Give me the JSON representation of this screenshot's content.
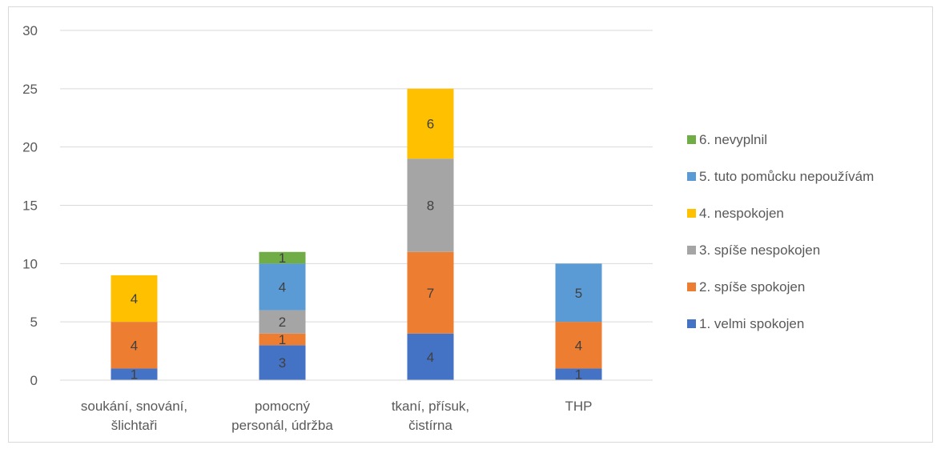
{
  "chart_data": {
    "type": "bar",
    "stacked": true,
    "categories": [
      [
        "soukání, snování,",
        "šlichtaři"
      ],
      [
        "pomocný",
        "personál, údržba"
      ],
      [
        "tkaní, přísuk,",
        "čistírna"
      ],
      [
        "THP"
      ]
    ],
    "ylim": [
      0,
      30
    ],
    "yticks": [
      0,
      5,
      10,
      15,
      20,
      25,
      30
    ],
    "grid": true,
    "legend_position": "right",
    "series": [
      {
        "name": "1. velmi spokojen",
        "color": "#4472C4",
        "values": [
          1,
          3,
          4,
          1
        ]
      },
      {
        "name": "2. spíše spokojen",
        "color": "#ED7D31",
        "values": [
          4,
          1,
          7,
          4
        ]
      },
      {
        "name": "3. spíše nespokojen",
        "color": "#A5A5A5",
        "values": [
          0,
          2,
          8,
          0
        ]
      },
      {
        "name": "4. nespokojen",
        "color": "#FFC000",
        "values": [
          4,
          0,
          6,
          0
        ]
      },
      {
        "name": "5. tuto pomůcku nepoužívám",
        "color": "#5B9BD5",
        "values": [
          0,
          4,
          0,
          5
        ]
      },
      {
        "name": "6. nevyplnil",
        "color": "#70AD47",
        "values": [
          0,
          1,
          0,
          0
        ]
      }
    ]
  }
}
